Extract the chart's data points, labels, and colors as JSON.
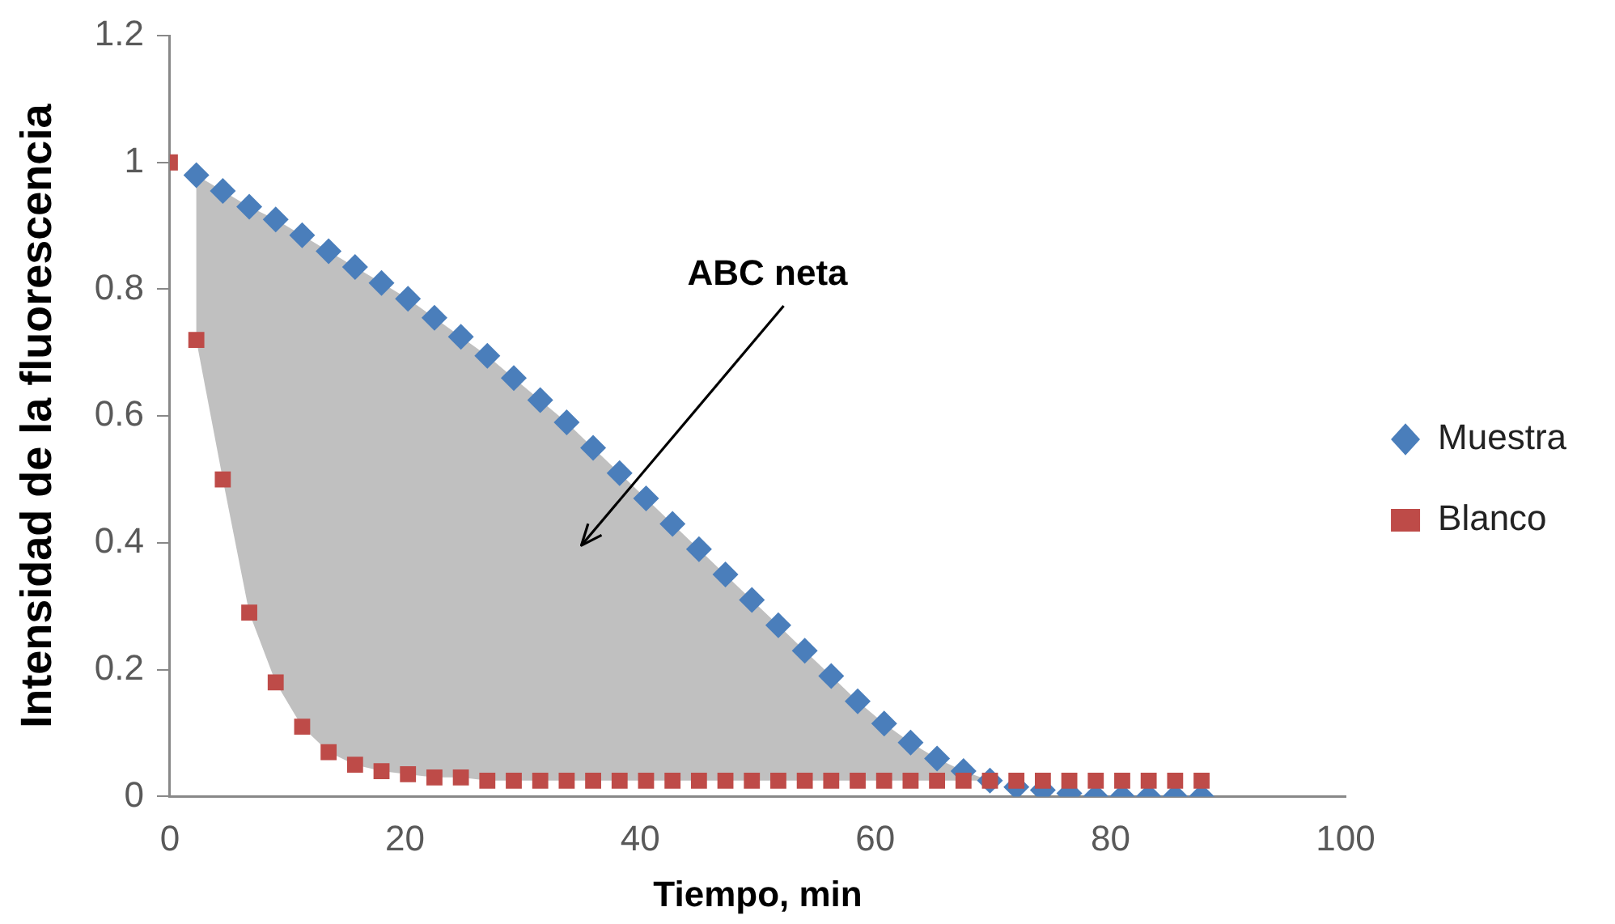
{
  "chart_data": {
    "type": "scatter",
    "xlabel": "Tiempo, min",
    "ylabel": "Intensidad de la fluorescencia",
    "xlim": [
      0,
      100
    ],
    "xticks": [
      0,
      20,
      40,
      60,
      80,
      100
    ],
    "ylim": [
      0,
      1.2
    ],
    "yticks": [
      0,
      0.2,
      0.4,
      0.6,
      0.8,
      {
        "value": 1,
        "label": "1"
      },
      1.2
    ],
    "grid": false,
    "legend": "right",
    "annotations": [
      "ABC neta"
    ],
    "series": [
      {
        "name": "Muestra",
        "type": "scatter",
        "marker": "diamond",
        "color": "#4a7ebb",
        "x": [
          2.25,
          4.5,
          6.75,
          9,
          11.25,
          13.5,
          15.75,
          18,
          20.25,
          22.5,
          24.75,
          27,
          29.25,
          31.5,
          33.75,
          36,
          38.25,
          40.5,
          42.75,
          45,
          47.25,
          49.5,
          51.75,
          54,
          56.25,
          58.5,
          60.75,
          63,
          65.25,
          67.5,
          69.75,
          72,
          74.25,
          76.5,
          78.75,
          81,
          83.25,
          85.5,
          87.75
        ],
        "values": [
          0.98,
          0.955,
          0.93,
          0.91,
          0.885,
          0.86,
          0.835,
          0.81,
          0.785,
          0.755,
          0.725,
          0.695,
          0.66,
          0.625,
          0.59,
          0.55,
          0.51,
          0.47,
          0.43,
          0.39,
          0.35,
          0.31,
          0.27,
          0.23,
          0.19,
          0.15,
          0.115,
          0.085,
          0.06,
          0.04,
          0.025,
          0.015,
          0.01,
          0.005,
          0,
          0,
          0,
          0,
          0
        ]
      },
      {
        "name": "Blanco",
        "type": "scatter",
        "marker": "square",
        "color": "#be4b48",
        "x": [
          0,
          2.25,
          4.5,
          6.75,
          9,
          11.25,
          13.5,
          15.75,
          18,
          20.25,
          22.5,
          24.75,
          27,
          29.25,
          31.5,
          33.75,
          36,
          38.25,
          40.5,
          42.75,
          45,
          47.25,
          49.5,
          51.75,
          54,
          56.25,
          58.5,
          60.75,
          63,
          65.25,
          67.5,
          69.75,
          72,
          74.25,
          76.5,
          78.75,
          81,
          83.25,
          85.5,
          87.75
        ],
        "values": [
          1,
          0.72,
          0.5,
          0.29,
          0.18,
          0.11,
          0.07,
          0.05,
          0.04,
          0.035,
          0.03,
          0.03,
          0.025,
          0.025,
          0.025,
          0.025,
          0.025,
          0.025,
          0.025,
          0.025,
          0.025,
          0.025,
          0.025,
          0.025,
          0.025,
          0.025,
          0.025,
          0.025,
          0.025,
          0.025,
          0.025,
          0.025,
          0.025,
          0.025,
          0.025,
          0.025,
          0.025,
          0.025,
          0.025,
          0.025
        ]
      }
    ]
  }
}
